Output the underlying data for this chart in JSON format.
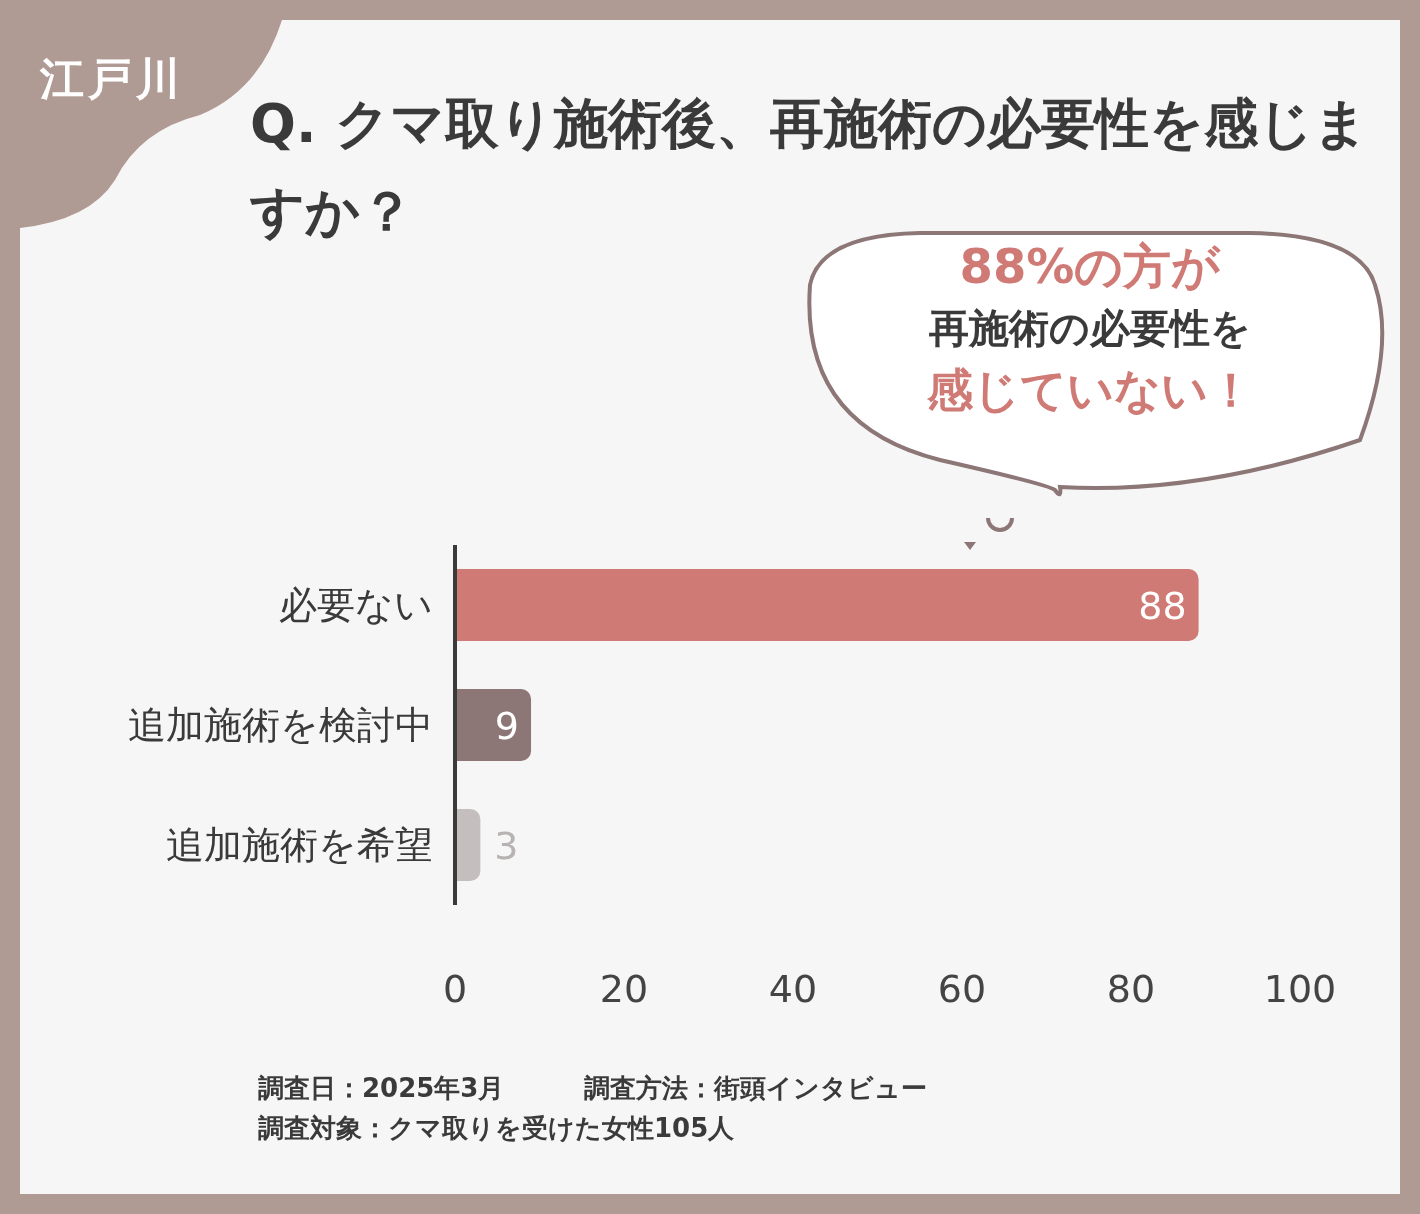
{
  "chart_data": {
    "type": "bar",
    "orientation": "horizontal",
    "title": "Q. クマ取り施術後、再施術の必要性を感じますか？",
    "categories": [
      "必要ない",
      "追加施術を検討中",
      "追加施術を希望"
    ],
    "values": [
      88,
      9,
      3
    ],
    "colors": [
      "#d07a76",
      "#8c7676",
      "#c4bfbe"
    ],
    "xlim": [
      0,
      100
    ],
    "xticks": [
      0,
      20,
      40,
      60,
      80,
      100
    ],
    "data_labels": true,
    "annotations": [
      "江戸川",
      "88%の方が",
      "再施術の必要性を",
      "感じていない！",
      "調査日：2025年3月",
      "調査方法：街頭インタビュー",
      "調査対象：クマ取りを受けた女性105人"
    ]
  }
}
